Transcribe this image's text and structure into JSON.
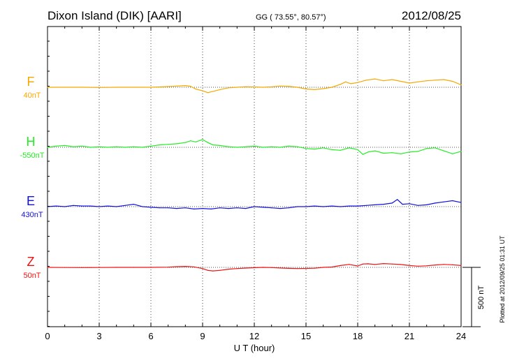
{
  "header": {
    "station": "Dixon Island (DIK)  [AARI]",
    "coords": "GG ( 73.55°,  80.57°)",
    "date": "2012/08/25"
  },
  "side_note": "Plotted at 2012/09/25 01:31  UT",
  "scale_bar": {
    "label": "500 nT",
    "value_nT": 500
  },
  "chart_data": {
    "type": "line",
    "title": "Dixon Island (DIK)  [AARI]",
    "xlabel": "U T (hour)",
    "ylabel": "",
    "xlim": [
      0,
      24
    ],
    "x_ticks": [
      0,
      3,
      6,
      9,
      12,
      15,
      18,
      21,
      24
    ],
    "x_tick_labels": [
      "0",
      "3",
      "6",
      "9",
      "12",
      "15",
      "18",
      "21",
      "24"
    ],
    "grid": true,
    "series": [
      {
        "name": "F",
        "baseline_label": "40nT",
        "color": "#f5a800",
        "x": [
          0,
          1,
          2,
          3,
          4,
          5,
          6,
          7,
          7.5,
          8,
          8.3,
          8.6,
          9,
          9.3,
          9.6,
          10,
          10.5,
          11,
          11.5,
          12,
          12.5,
          13,
          13.5,
          14,
          14.5,
          15,
          15.5,
          16,
          16.5,
          17,
          17.3,
          17.6,
          18,
          18.5,
          19,
          19.5,
          20,
          20.5,
          21,
          21.5,
          22,
          22.5,
          23,
          23.5,
          24
        ],
        "values": [
          0,
          0,
          0,
          -2,
          0,
          0,
          0,
          6,
          10,
          14,
          8,
          -15,
          -30,
          -45,
          -35,
          -20,
          -5,
          0,
          5,
          3,
          0,
          4,
          10,
          8,
          0,
          -15,
          -20,
          -12,
          0,
          25,
          45,
          30,
          40,
          60,
          70,
          55,
          65,
          50,
          35,
          45,
          55,
          60,
          65,
          50,
          20
        ]
      },
      {
        "name": "H",
        "baseline_label": "-550nT",
        "color": "#22ee22",
        "x": [
          0,
          0.5,
          1,
          1.5,
          2,
          2.5,
          3,
          3.5,
          4,
          4.5,
          5,
          5.5,
          6,
          6.5,
          7,
          7.5,
          8,
          8.3,
          8.6,
          9,
          9.3,
          9.6,
          10,
          10.5,
          11,
          11.5,
          12,
          12.5,
          13,
          13.5,
          14,
          14.5,
          15,
          15.5,
          16,
          16.5,
          17,
          17.5,
          18,
          18.3,
          18.6,
          19,
          19.5,
          20,
          20.5,
          21,
          21.5,
          22,
          22.5,
          23,
          23.5,
          24
        ],
        "values": [
          0,
          10,
          15,
          5,
          10,
          0,
          5,
          0,
          5,
          0,
          5,
          0,
          10,
          20,
          25,
          30,
          40,
          55,
          45,
          65,
          40,
          20,
          15,
          5,
          0,
          5,
          10,
          0,
          5,
          0,
          10,
          5,
          -10,
          -15,
          -5,
          -20,
          -25,
          -5,
          -20,
          -60,
          -40,
          -30,
          -50,
          -45,
          -55,
          -40,
          -35,
          -10,
          -5,
          -30,
          -55,
          -35
        ]
      },
      {
        "name": "E",
        "baseline_label": "430nT",
        "color": "#1010dd",
        "x": [
          0,
          0.5,
          1,
          1.5,
          2,
          2.5,
          3,
          3.5,
          4,
          4.5,
          5,
          5.5,
          6,
          6.5,
          7,
          7.5,
          8,
          8.5,
          9,
          9.5,
          10,
          10.5,
          11,
          11.5,
          12,
          12.5,
          13,
          13.5,
          14,
          14.5,
          15,
          15.5,
          16,
          16.5,
          17,
          17.5,
          18,
          18.5,
          19,
          19.5,
          20,
          20.3,
          20.6,
          21,
          21.5,
          22,
          22.5,
          23,
          23.5,
          24
        ],
        "values": [
          0,
          5,
          0,
          10,
          5,
          5,
          0,
          5,
          0,
          10,
          20,
          0,
          -5,
          -10,
          -10,
          -15,
          -10,
          -20,
          -15,
          -20,
          -10,
          -15,
          -10,
          -15,
          0,
          -5,
          -10,
          -15,
          -10,
          0,
          0,
          5,
          0,
          5,
          0,
          5,
          5,
          10,
          15,
          20,
          30,
          60,
          20,
          25,
          10,
          15,
          30,
          40,
          50,
          35
        ]
      },
      {
        "name": "Z",
        "baseline_label": "50nT",
        "color": "#ee1111",
        "x": [
          0,
          1,
          2,
          3,
          4,
          5,
          6,
          7,
          7.5,
          8,
          8.5,
          9,
          9.3,
          9.6,
          10,
          10.5,
          11,
          11.5,
          12,
          12.5,
          13,
          13.5,
          14,
          14.5,
          15,
          15.5,
          16,
          16.5,
          17,
          17.5,
          18,
          18.3,
          18.6,
          19,
          19.5,
          20,
          20.5,
          21,
          21.5,
          22,
          22.5,
          23,
          23.5,
          24
        ],
        "values": [
          0,
          -1,
          -2,
          -1,
          0,
          0,
          0,
          2,
          6,
          8,
          4,
          -10,
          -25,
          -30,
          -25,
          -15,
          -10,
          -6,
          -3,
          0,
          -2,
          -5,
          -8,
          -10,
          -9,
          -7,
          0,
          3,
          15,
          25,
          12,
          28,
          30,
          25,
          32,
          28,
          24,
          15,
          10,
          13,
          20,
          25,
          22,
          15
        ]
      }
    ]
  }
}
